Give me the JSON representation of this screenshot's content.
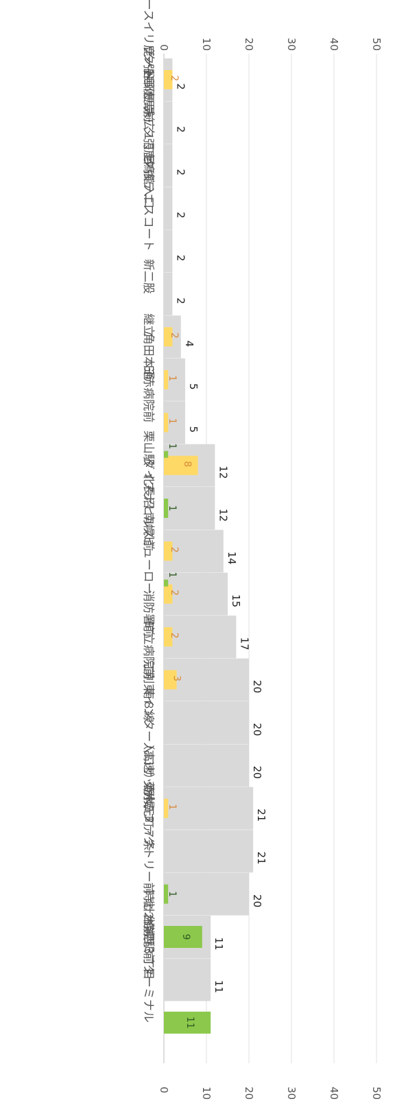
{
  "chart_data": {
    "type": "bar",
    "categories": [
      "レースイリゾート",
      "夕張郵便局前",
      "末広１丁目",
      "鹿ノ谷郵便局・夕張鹿鳴館入口",
      "夕張テニスコート",
      "新二股",
      "継立",
      "角田本通",
      "日赤病院前",
      "栗山駅",
      "北長沼",
      "ダイアナヒルズ前",
      "南幌ビューロー",
      "消防署前",
      "町立病院前",
      "南８線",
      "江別東インター入口",
      "（高速）野幌",
      "菊水元町７条",
      "サッポロファクトリー前",
      "時計台前",
      "北２条西３丁目",
      "札幌駅前ターミナル"
    ],
    "series": [
      {
        "values": [
          2,
          2,
          2,
          2,
          2,
          2,
          4,
          5,
          5,
          12,
          12,
          14,
          15,
          17,
          20,
          20,
          20,
          21,
          21,
          20,
          11,
          11,
          0
        ],
        "color": "#d9d9d9"
      },
      {
        "values": [
          2,
          0,
          0,
          0,
          0,
          0,
          2,
          1,
          1,
          8,
          0,
          2,
          2,
          2,
          3,
          0,
          0,
          1,
          0,
          0,
          0,
          0,
          0
        ],
        "color": "#ffd966"
      },
      {
        "values": [
          0,
          0,
          0,
          0,
          0,
          0,
          0,
          0,
          0,
          1,
          1,
          0,
          1,
          0,
          0,
          0,
          0,
          0,
          0,
          1,
          9,
          0,
          11
        ],
        "color": "#8cc84b"
      }
    ],
    "ticks": [
      "0",
      "10",
      "20",
      "30",
      "40",
      "50"
    ],
    "xlim": [
      0,
      50
    ],
    "orientation": "rotated-90",
    "grid": true
  }
}
